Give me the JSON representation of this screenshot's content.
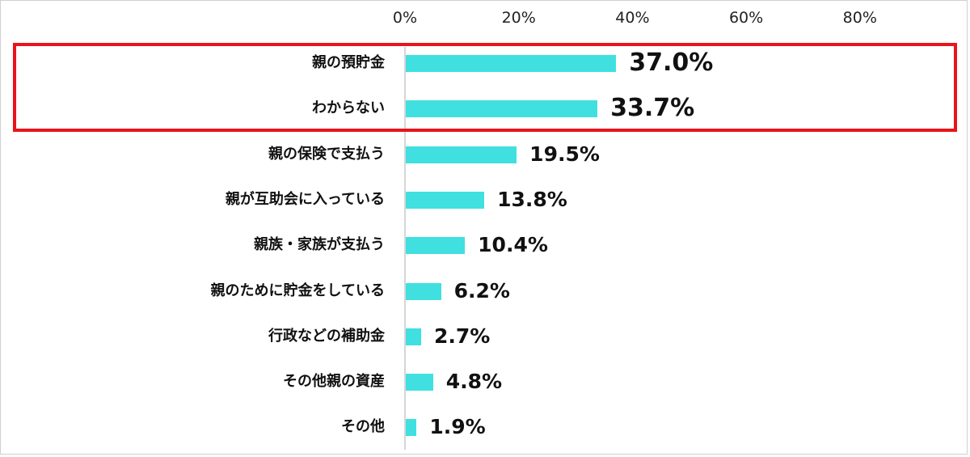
{
  "chart_data": {
    "type": "bar",
    "orientation": "horizontal",
    "title": "",
    "xlabel": "",
    "ylabel": "",
    "xlim": [
      0,
      90
    ],
    "x_ticks": [
      "0%",
      "20%",
      "40%",
      "60%",
      "80%"
    ],
    "grid": false,
    "legend": null,
    "categories": [
      "親の預貯金",
      "わからない",
      "親の保険で支払う",
      "親が互助会に入っている",
      "親族・家族が支払う",
      "親のために貯金をしている",
      "行政などの補助金",
      "その他親の資産",
      "その他"
    ],
    "values": [
      37.0,
      33.7,
      19.5,
      13.8,
      10.4,
      6.2,
      2.7,
      4.8,
      1.9
    ],
    "value_labels": [
      "37.0%",
      "33.7%",
      "19.5%",
      "13.8%",
      "10.4%",
      "6.2%",
      "2.7%",
      "4.8%",
      "1.9%"
    ],
    "bar_color": "#40E0E0",
    "annotations": [
      {
        "type": "highlight-box",
        "color": "#E8141A",
        "covers_categories": [
          "親の預貯金",
          "わからない"
        ]
      }
    ]
  },
  "ticks": [
    "0%",
    "20%",
    "40%",
    "60%",
    "80%"
  ],
  "rows": [
    {
      "label": "親の預貯金",
      "value": "37.0%"
    },
    {
      "label": "わからない",
      "value": "33.7%"
    },
    {
      "label": "親の保険で支払う",
      "value": "19.5%"
    },
    {
      "label": "親が互助会に入っている",
      "value": "13.8%"
    },
    {
      "label": "親族・家族が支払う",
      "value": "10.4%"
    },
    {
      "label": "親のために貯金をしている",
      "value": "6.2%"
    },
    {
      "label": "行政などの補助金",
      "value": "2.7%"
    },
    {
      "label": "その他親の資産",
      "value": "4.8%"
    },
    {
      "label": "その他",
      "value": "1.9%"
    }
  ]
}
